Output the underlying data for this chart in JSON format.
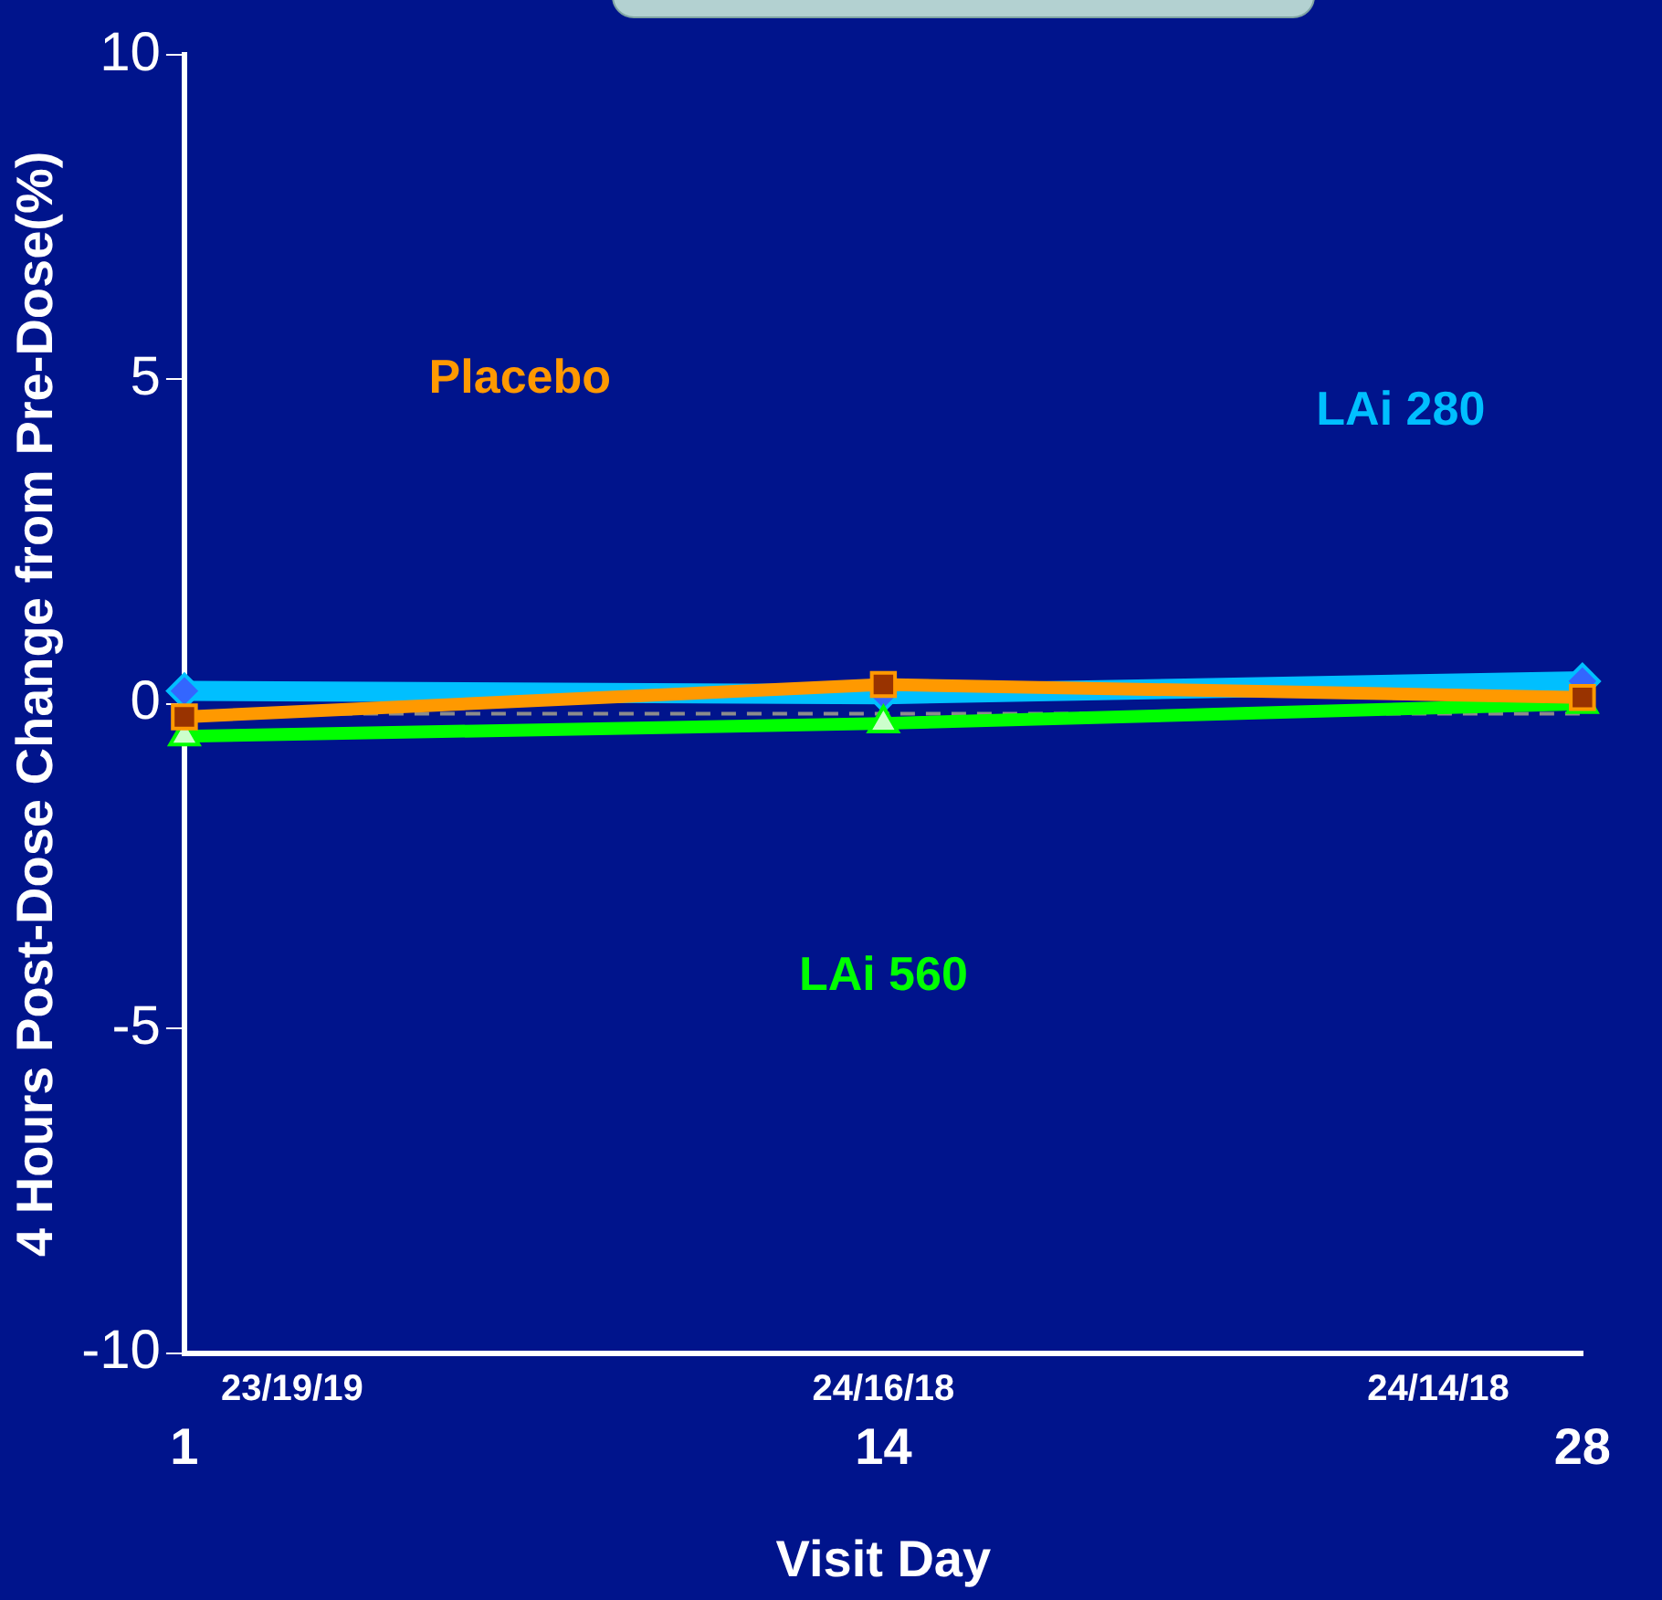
{
  "chart_data": {
    "type": "line",
    "xlabel": "Visit Day",
    "ylabel": "4 Hours Post-Dose Change from Pre-Dose(%)",
    "categories": [
      "1",
      "14",
      "28"
    ],
    "ylim": [
      -10,
      10
    ],
    "yticks": [
      -10,
      -5,
      0,
      5,
      10
    ],
    "grid": false,
    "legend": false,
    "line_style": "solid",
    "series": [
      {
        "name": "LAi 280",
        "color": "#00bfff",
        "marker": "diamond",
        "values": [
          0.2,
          0.15,
          0.35
        ]
      },
      {
        "name": "Placebo",
        "color": "#ff9900",
        "marker": "square",
        "values": [
          -0.2,
          0.3,
          0.1
        ]
      },
      {
        "name": "LAi 560",
        "color": "#00ff00",
        "marker": "triangle",
        "values": [
          -0.5,
          -0.3,
          0.0
        ]
      }
    ],
    "ref_lines": [
      {
        "axis": "y",
        "value": -0.15,
        "color": "#8c8c8c",
        "line_style": "dashed"
      }
    ],
    "annotations": [
      "23/19/19",
      "24/16/18",
      "24/14/18"
    ]
  }
}
